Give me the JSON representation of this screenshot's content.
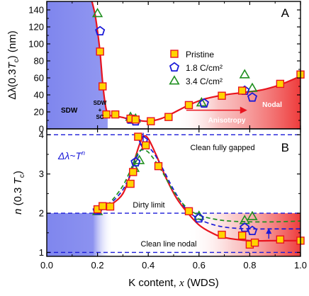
{
  "colors": {
    "sdw_blue": "#7f86ee",
    "nodal_red": "#ee3b3b",
    "fit_red": "#e8141e",
    "dash_blue": "#1a1ad8",
    "green": "#1f8f1f",
    "marker_fill": "#ffd400",
    "marker_edge": "#e8141e"
  },
  "chart_data": [
    {
      "type": "scatter",
      "panel_label": "A",
      "ylabel": "Δλ(0.3T_c) (nm)",
      "ylabel_parts": {
        "main": "Δλ(0.3",
        "T": "T",
        "c": "c",
        "end": ") (nm)"
      },
      "xlim": [
        0,
        1.0
      ],
      "ylim": [
        0,
        150
      ],
      "yticks": [
        0,
        20,
        40,
        60,
        80,
        100,
        120,
        140
      ],
      "ytick_labels": [
        "0",
        "20",
        "40",
        "60",
        "80",
        "100",
        "120",
        "140"
      ],
      "legend": [
        "Pristine",
        "1.8 C/cm²",
        "3.4 C/cm²"
      ],
      "legend_placement": "center-right",
      "region_labels": {
        "sdw": "SDW",
        "sdw_sc_1": "SDW",
        "sdw_sc_2": "+",
        "sdw_sc_3": "SC",
        "anisotropy": "Anisotropy",
        "nodal": "Nodal"
      },
      "series": [
        {
          "name": "Pristine",
          "marker": "square",
          "x": [
            0.21,
            0.22,
            0.235,
            0.27,
            0.33,
            0.35,
            0.41,
            0.48,
            0.56,
            0.69,
            0.77,
            0.92,
            1.0
          ],
          "y": [
            91,
            50,
            17,
            17,
            12,
            11,
            9,
            14,
            28,
            39,
            45,
            53,
            64
          ]
        },
        {
          "name": "1.8 C/cm²",
          "marker": "pentagon",
          "x": [
            0.21,
            0.33,
            0.35,
            0.62,
            0.78,
            0.81
          ],
          "y": [
            115,
            11,
            9,
            30,
            45,
            37
          ]
        },
        {
          "name": "3.4 C/cm²",
          "marker": "triangle",
          "x": [
            0.2,
            0.33,
            0.35,
            0.61,
            0.78,
            0.81
          ],
          "y": [
            136,
            14,
            12,
            31,
            64,
            48
          ]
        }
      ],
      "fit_curve": {
        "x": [
          0.178,
          0.19,
          0.2,
          0.21,
          0.22,
          0.23,
          0.24,
          0.26,
          0.29,
          0.32,
          0.36,
          0.4,
          0.45,
          0.5,
          0.56,
          0.62,
          0.7,
          0.78,
          0.85,
          0.92,
          1.0
        ],
        "y": [
          150,
          135,
          115,
          90,
          55,
          30,
          18,
          15,
          14,
          12,
          10,
          9,
          12,
          19,
          28,
          35,
          40,
          43,
          46,
          52,
          62
        ]
      },
      "anisotropy_arrow": {
        "x_start": 0.55,
        "x_end": 0.79,
        "y": 22
      }
    },
    {
      "type": "scatter",
      "panel_label": "B",
      "ylabel_parts": {
        "main": "n",
        "mid": " (0.3 ",
        "T": "T",
        "c": "c",
        "end": ")"
      },
      "xlabel_parts": {
        "main": "K content, ",
        "x": "x",
        "end": " (WDS)"
      },
      "xlim": [
        0,
        1.0
      ],
      "ylim": [
        0.9,
        4.15
      ],
      "xticks": [
        0.0,
        0.2,
        0.4,
        0.6,
        0.8,
        1.0
      ],
      "xtick_labels": [
        "0.0",
        "0.2",
        "0.4",
        "0.6",
        "0.8",
        "1.0"
      ],
      "yticks": [
        1,
        2,
        3,
        4
      ],
      "ytick_labels": [
        "1",
        "2",
        "3",
        "4"
      ],
      "formula": {
        "pre": "Δλ~T",
        "sup": "n"
      },
      "reference_lines": [
        {
          "y": 4,
          "label": "Clean fully gapped"
        },
        {
          "y": 2,
          "label": "Dirty limit"
        },
        {
          "y": 1,
          "label": "Clean line nodal"
        }
      ],
      "series": [
        {
          "name": "Pristine",
          "marker": "square",
          "x": [
            0.2,
            0.22,
            0.25,
            0.33,
            0.34,
            0.36,
            0.39,
            0.44,
            0.56,
            0.69,
            0.77,
            0.8,
            0.82,
            0.92,
            1.0
          ],
          "y": [
            2.1,
            2.18,
            2.17,
            2.75,
            3.05,
            3.95,
            3.73,
            3.2,
            2.05,
            1.45,
            1.43,
            1.2,
            1.25,
            1.33,
            1.3
          ]
        },
        {
          "name": "1.8 C/cm²",
          "marker": "pentagon",
          "x": [
            0.2,
            0.35,
            0.38,
            0.6,
            0.78,
            0.81
          ],
          "y": [
            2.07,
            3.3,
            3.85,
            1.87,
            1.63,
            1.55
          ]
        },
        {
          "name": "3.4 C/cm²",
          "marker": "triangle",
          "x": [
            0.2,
            0.345,
            0.365,
            0.6,
            0.78,
            0.81
          ],
          "y": [
            2.05,
            3.15,
            3.35,
            1.93,
            1.82,
            1.92
          ]
        }
      ],
      "fit_curves": [
        {
          "name": "Pristine fit",
          "style": "solid-red",
          "x": [
            0.19,
            0.22,
            0.26,
            0.3,
            0.33,
            0.36,
            0.38,
            0.4,
            0.43,
            0.47,
            0.51,
            0.55,
            0.6,
            0.65,
            0.7,
            0.8,
            0.9,
            1.0
          ],
          "y": [
            2.08,
            2.12,
            2.25,
            2.5,
            3.0,
            3.65,
            3.95,
            3.9,
            3.5,
            2.9,
            2.4,
            2.05,
            1.7,
            1.5,
            1.38,
            1.3,
            1.3,
            1.3
          ]
        },
        {
          "name": "1.8 C/cm² fit",
          "style": "dashed-blue",
          "x": [
            0.19,
            0.22,
            0.26,
            0.3,
            0.33,
            0.36,
            0.39,
            0.42,
            0.46,
            0.5,
            0.55,
            0.6,
            0.66,
            0.72,
            0.8,
            0.9,
            1.0
          ],
          "y": [
            2.05,
            2.1,
            2.3,
            2.6,
            3.0,
            3.5,
            3.7,
            3.55,
            3.1,
            2.6,
            2.1,
            1.85,
            1.7,
            1.63,
            1.6,
            1.6,
            1.6
          ]
        },
        {
          "name": "3.4 C/cm² fit",
          "style": "dashed-green",
          "x": [
            0.19,
            0.22,
            0.26,
            0.3,
            0.33,
            0.36,
            0.39,
            0.42,
            0.46,
            0.5,
            0.55,
            0.6,
            0.66,
            0.72,
            0.8,
            0.9,
            1.0
          ],
          "y": [
            2.05,
            2.1,
            2.35,
            2.7,
            3.1,
            3.55,
            3.6,
            3.4,
            3.0,
            2.55,
            2.15,
            1.95,
            1.85,
            1.8,
            1.78,
            1.78,
            1.8
          ]
        }
      ],
      "arrows": [
        {
          "x": 0.38,
          "y_start": 4.05,
          "y_end": 3.6
        },
        {
          "x": 0.875,
          "y_start": 1.35,
          "y_end": 1.62
        }
      ]
    }
  ]
}
